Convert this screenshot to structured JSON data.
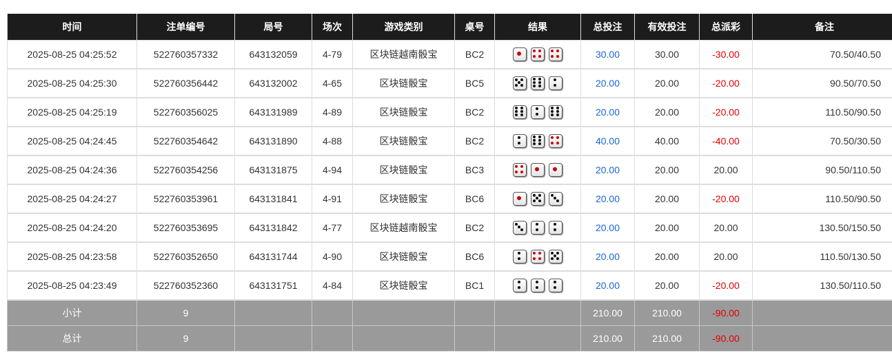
{
  "headers": [
    "时间",
    "注单编号",
    "局号",
    "场次",
    "游戏类别",
    "桌号",
    "结果",
    "总投注",
    "有效投注",
    "总派彩",
    "备注"
  ],
  "rows": [
    {
      "time": "2025-08-25 04:25:52",
      "bet_id": "522760357332",
      "round": "643132059",
      "session": "4-79",
      "game": "区块链越南骰宝",
      "table": "BC2",
      "dice": [
        1,
        4,
        4
      ],
      "total_bet": "30.00",
      "valid_bet": "30.00",
      "payout": "-30.00",
      "note": "70.50/40.50"
    },
    {
      "time": "2025-08-25 04:25:30",
      "bet_id": "522760356442",
      "round": "643132002",
      "session": "4-65",
      "game": "区块链骰宝",
      "table": "BC5",
      "dice": [
        5,
        6,
        2
      ],
      "total_bet": "20.00",
      "valid_bet": "20.00",
      "payout": "-20.00",
      "note": "90.50/70.50"
    },
    {
      "time": "2025-08-25 04:25:19",
      "bet_id": "522760356025",
      "round": "643131989",
      "session": "4-89",
      "game": "区块链骰宝",
      "table": "BC2",
      "dice": [
        6,
        2,
        6
      ],
      "total_bet": "20.00",
      "valid_bet": "20.00",
      "payout": "-20.00",
      "note": "110.50/90.50"
    },
    {
      "time": "2025-08-25 04:24:45",
      "bet_id": "522760354642",
      "round": "643131890",
      "session": "4-88",
      "game": "区块链骰宝",
      "table": "BC2",
      "dice": [
        2,
        6,
        4
      ],
      "total_bet": "40.00",
      "valid_bet": "40.00",
      "payout": "-40.00",
      "note": "70.50/30.50"
    },
    {
      "time": "2025-08-25 04:24:36",
      "bet_id": "522760354256",
      "round": "643131875",
      "session": "4-94",
      "game": "区块链骰宝",
      "table": "BC3",
      "dice": [
        4,
        1,
        1
      ],
      "total_bet": "20.00",
      "valid_bet": "20.00",
      "payout": "20.00",
      "note": "90.50/110.50"
    },
    {
      "time": "2025-08-25 04:24:27",
      "bet_id": "522760353961",
      "round": "643131841",
      "session": "4-91",
      "game": "区块链骰宝",
      "table": "BC6",
      "dice": [
        1,
        5,
        3
      ],
      "total_bet": "20.00",
      "valid_bet": "20.00",
      "payout": "-20.00",
      "note": "110.50/90.50"
    },
    {
      "time": "2025-08-25 04:24:20",
      "bet_id": "522760353695",
      "round": "643131842",
      "session": "4-77",
      "game": "区块链越南骰宝",
      "table": "BC2",
      "dice": [
        3,
        2,
        2
      ],
      "total_bet": "20.00",
      "valid_bet": "20.00",
      "payout": "20.00",
      "note": "130.50/150.50"
    },
    {
      "time": "2025-08-25 04:23:58",
      "bet_id": "522760352650",
      "round": "643131744",
      "session": "4-90",
      "game": "区块链骰宝",
      "table": "BC6",
      "dice": [
        2,
        4,
        5
      ],
      "total_bet": "20.00",
      "valid_bet": "20.00",
      "payout": "20.00",
      "note": "110.50/130.50"
    },
    {
      "time": "2025-08-25 04:23:49",
      "bet_id": "522760352360",
      "round": "643131751",
      "session": "4-84",
      "game": "区块链骰宝",
      "table": "BC1",
      "dice": [
        2,
        2,
        2
      ],
      "total_bet": "20.00",
      "valid_bet": "20.00",
      "payout": "-20.00",
      "note": "130.50/110.50"
    }
  ],
  "subtotal": {
    "label": "小计",
    "count": "9",
    "total_bet": "210.00",
    "valid_bet": "210.00",
    "payout": "-90.00"
  },
  "total": {
    "label": "总计",
    "count": "9",
    "total_bet": "210.00",
    "valid_bet": "210.00",
    "payout": "-90.00"
  },
  "colors": {
    "positive_bet": "#1a66d0",
    "negative": "#e00000",
    "header_bg": "#1c1c1c",
    "summary_bg": "#9a9a9a"
  }
}
